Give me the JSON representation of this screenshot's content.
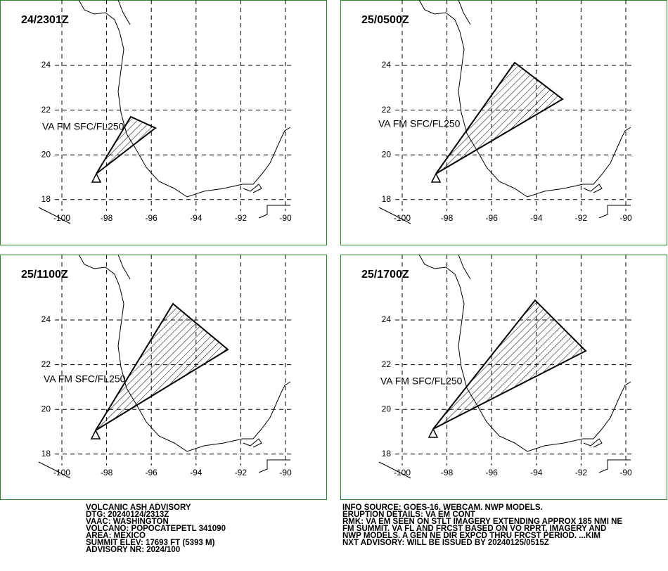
{
  "panels": [
    {
      "valid_time": "24/2301Z",
      "label": "VA FM SFC/FL250"
    },
    {
      "valid_time": "25/0500Z",
      "label": "VA FM SFC/FL250"
    },
    {
      "valid_time": "25/1100Z",
      "label": "VA FM SFC/FL250"
    },
    {
      "valid_time": "25/1700Z",
      "label": "VA FM SFC/FL250"
    }
  ],
  "axes": {
    "lat_ticks": [
      24,
      22,
      20,
      18
    ],
    "lon_ticks": [
      -100,
      -98,
      -96,
      -94,
      -92,
      -90
    ]
  },
  "advisory": {
    "left": [
      "VOLCANIC ASH ADVISORY",
      "DTG: 20240124/2313Z",
      "VAAC: WASHINGTON",
      "VOLCANO: POPOCATEPETL 341090",
      "AREA: MEXICO",
      "SUMMIT ELEV: 17693 FT (5393 M)",
      "ADVISORY NR: 2024/100"
    ],
    "right": [
      "INFO SOURCE: GOES-16. WEBCAM. NWP MODELS.",
      "ERUPTION DETAILS: VA EM CONT",
      "RMK: VA EM SEEN ON STLT IMAGERY EXTENDING APPROX 185 NMI NE",
      "FM SUMMIT. VA FL AND FRCST BASED ON VO RPRT, IMAGERY AND",
      "NWP MODELS. A GEN NE DIR EXPCD THRU FRCST PERIOD. ...KIM",
      "NXT ADVISORY: WILL BE ISSUED BY 20240125/0515Z"
    ]
  }
}
